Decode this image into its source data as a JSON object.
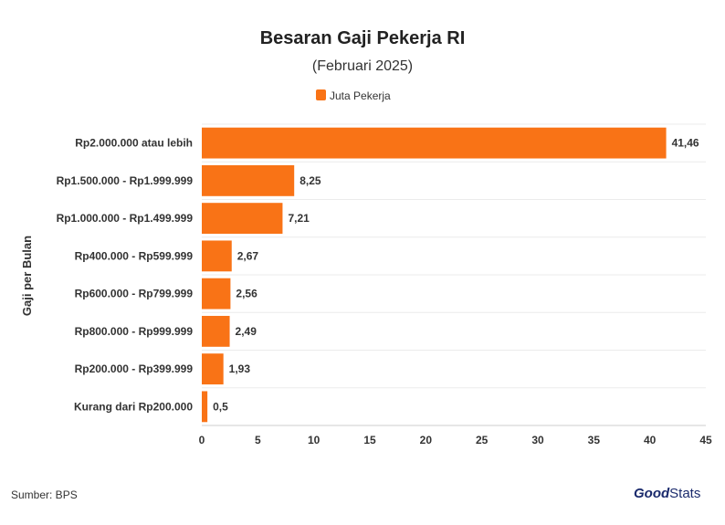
{
  "chart_data": {
    "type": "bar",
    "orientation": "horizontal",
    "title": "Besaran Gaji Pekerja RI",
    "subtitle": "(Februari 2025)",
    "ylabel": "Gaji per Bulan",
    "categories": [
      "Rp2.000.000 atau lebih",
      "Rp1.500.000 - Rp1.999.999",
      "Rp1.000.000 - Rp1.499.999",
      "Rp400.000 - Rp599.999",
      "Rp600.000 - Rp799.999",
      "Rp800.000 - Rp999.999",
      "Rp200.000 - Rp399.999",
      "Kurang dari Rp200.000"
    ],
    "series": [
      {
        "name": "Juta Pekerja",
        "color": "#f97316",
        "values": [
          41.46,
          8.25,
          7.21,
          2.67,
          2.56,
          2.49,
          1.93,
          0.5
        ],
        "labels": [
          "41,46",
          "8,25",
          "7,21",
          "2,67",
          "2,56",
          "2,49",
          "1,93",
          "0,5"
        ]
      }
    ],
    "xlim": [
      0,
      45
    ],
    "xticks": [
      0,
      5,
      10,
      15,
      20,
      25,
      30,
      35,
      40,
      45
    ],
    "grid": true,
    "legend": "top-center"
  },
  "footer": {
    "source": "Sumber: BPS",
    "logo_good": "Good",
    "logo_stats": "Stats"
  }
}
